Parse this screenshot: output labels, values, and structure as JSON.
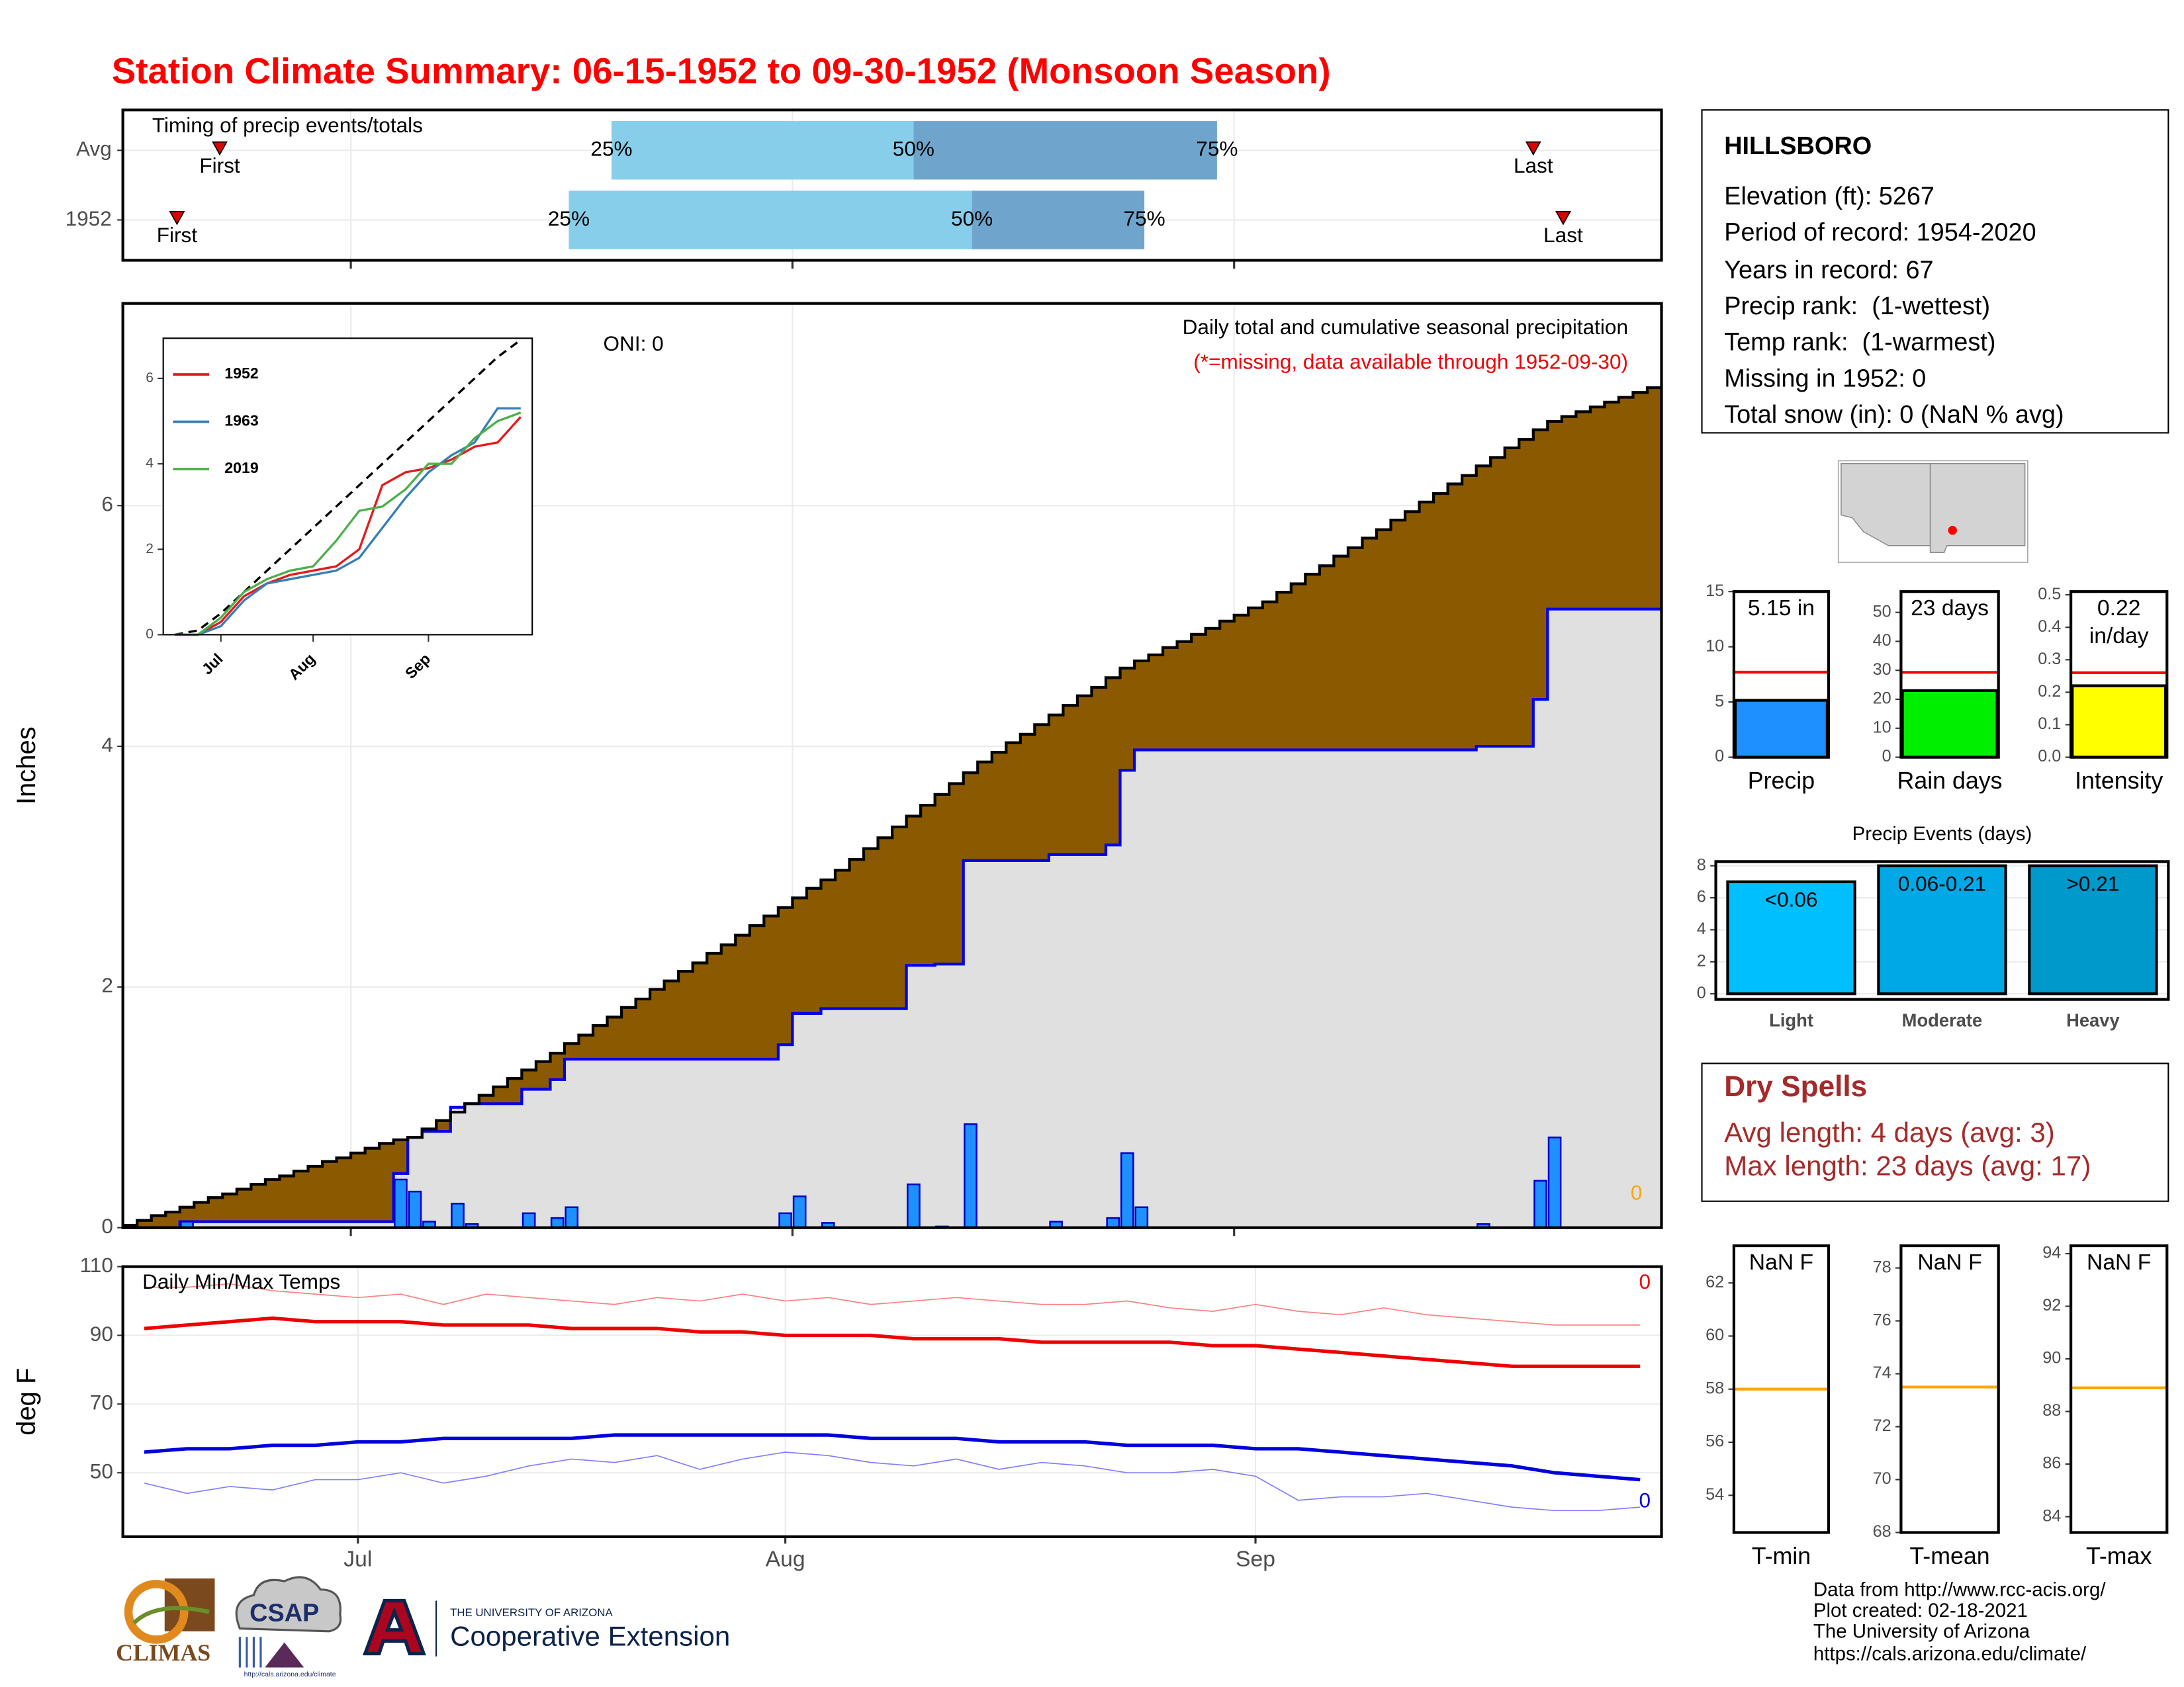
{
  "title": "Station Climate Summary: 06-15-1952 to 09-30-1952 (Monsoon Season)",
  "station": {
    "name": "HILLSBORO",
    "details": [
      "Elevation (ft): 5267",
      "Period of record: 1954-2020",
      "Years in record: 67",
      "Precip rank:  (1-wettest)",
      "Temp rank:  (1-warmest)",
      "Missing in 1952: 0",
      "Total snow (in): 0 (NaN % avg)"
    ]
  },
  "dry_spells": {
    "title": "Dry Spells",
    "lines": [
      "Avg length: 4 days (avg: 3)",
      "Max length: 23 days (avg: 17)"
    ]
  },
  "credits": [
    "Data from http://www.rcc-acis.org/",
    "Plot created: 02-18-2021",
    "The University of Arizona",
    "https://cals.arizona.edu/climate/"
  ],
  "logos": {
    "climas": "CLIMAS",
    "csap": "CSAP",
    "csap_url": "http://cals.arizona.edu/climate",
    "university": "THE UNIVERSITY OF ARIZONA",
    "extension": "Cooperative Extension"
  },
  "chart_data": [
    {
      "type": "timing",
      "title": "Timing of precip events/totals",
      "xlim": [
        0,
        108
      ],
      "xticks": [
        16,
        47,
        78
      ],
      "grid": true,
      "marker_labels": {
        "first": "First",
        "last": "Last",
        "p25": "25%",
        "p50": "50%",
        "p75": "75%"
      },
      "colors": [
        "#87ceeb",
        "#6fa5cd"
      ],
      "marker_color": "#dd0000",
      "series": [
        {
          "name": "Avg",
          "first": 6.8,
          "p25": 34.3,
          "p50": 55.5,
          "p75": 76.8,
          "last": 99.0
        },
        {
          "name": "1952",
          "first": 3.8,
          "p25": 31.3,
          "p50": 59.6,
          "p75": 71.7,
          "last": 101.1
        }
      ]
    },
    {
      "type": "precip",
      "title": "Daily total and cumulative seasonal precipitation",
      "subtitle": "(*=missing, data available through 1952-09-30)",
      "oni_label": "ONI: 0",
      "missing_days": 0,
      "y_label": "Inches",
      "ylim": [
        0,
        7.68
      ],
      "yticks": [
        0,
        2,
        4,
        6
      ],
      "grid": true,
      "average_color": "#8b5a00",
      "observed_color": "#e0e0e0",
      "line_color": "#0000ee",
      "bar_color": "#1e90ff",
      "daily": [
        0,
        0,
        0,
        0,
        0.05,
        0,
        0,
        0,
        0,
        0,
        0,
        0,
        0,
        0,
        0,
        0,
        0,
        0,
        0,
        0.4,
        0.3,
        0.05,
        0,
        0.2,
        0.03,
        0,
        0,
        0,
        0.12,
        0,
        0.08,
        0.17,
        0,
        0,
        0,
        0,
        0,
        0,
        0,
        0,
        0,
        0,
        0,
        0,
        0,
        0,
        0.12,
        0.26,
        0,
        0.04,
        0,
        0,
        0,
        0,
        0,
        0.36,
        0,
        0.01,
        0,
        0.86,
        0,
        0,
        0,
        0,
        0,
        0.05,
        0,
        0,
        0,
        0.08,
        0.62,
        0.17,
        0,
        0,
        0,
        0,
        0,
        0,
        0,
        0,
        0,
        0,
        0,
        0,
        0,
        0,
        0,
        0,
        0,
        0,
        0,
        0,
        0,
        0,
        0,
        0.03,
        0,
        0,
        0,
        0.39,
        0.75,
        0,
        0,
        0,
        0,
        0,
        0,
        0
      ],
      "average_cumulative": [
        0.02,
        0.06,
        0.1,
        0.13,
        0.17,
        0.21,
        0.25,
        0.28,
        0.32,
        0.36,
        0.4,
        0.43,
        0.47,
        0.51,
        0.55,
        0.58,
        0.62,
        0.66,
        0.7,
        0.73,
        0.75,
        0.82,
        0.89,
        0.96,
        1.03,
        1.1,
        1.17,
        1.24,
        1.31,
        1.38,
        1.45,
        1.53,
        1.6,
        1.68,
        1.75,
        1.83,
        1.9,
        1.98,
        2.05,
        2.13,
        2.2,
        2.28,
        2.35,
        2.43,
        2.51,
        2.59,
        2.66,
        2.74,
        2.82,
        2.89,
        2.97,
        3.06,
        3.15,
        3.24,
        3.33,
        3.42,
        3.51,
        3.6,
        3.69,
        3.78,
        3.87,
        3.95,
        4.03,
        4.1,
        4.18,
        4.26,
        4.34,
        4.42,
        4.49,
        4.57,
        4.65,
        4.71,
        4.76,
        4.82,
        4.87,
        4.93,
        4.98,
        5.04,
        5.09,
        5.15,
        5.2,
        5.28,
        5.35,
        5.43,
        5.5,
        5.58,
        5.65,
        5.73,
        5.8,
        5.88,
        5.95,
        6.03,
        6.1,
        6.18,
        6.25,
        6.33,
        6.4,
        6.48,
        6.55,
        6.63,
        6.7,
        6.74,
        6.78,
        6.82,
        6.86,
        6.9,
        6.94,
        6.98
      ]
    },
    {
      "type": "line",
      "categories": [
        null,
        null,
        "Jul",
        null,
        null,
        null,
        "Aug",
        null,
        null,
        null,
        null,
        "Sep",
        null,
        null,
        null,
        null
      ],
      "ylim": [
        0,
        6.94
      ],
      "yticks": [
        0,
        2,
        4,
        6
      ],
      "grid": false,
      "legend": "top-left",
      "series": [
        {
          "color": "#000000",
          "dash": true,
          "values": [
            0,
            0.1,
            0.5,
            1.0,
            1.5,
            2.0,
            2.5,
            3.0,
            3.5,
            4.0,
            4.5,
            5.0,
            5.5,
            6.0,
            6.5,
            6.9
          ]
        },
        {
          "name": "1952",
          "color": "#e41a1c",
          "values": [
            0,
            0,
            0.3,
            0.9,
            1.2,
            1.4,
            1.5,
            1.6,
            2.0,
            3.5,
            3.8,
            3.9,
            4.1,
            4.4,
            4.5,
            5.1
          ]
        },
        {
          "name": "1963",
          "color": "#377eb8",
          "values": [
            0,
            0,
            0.2,
            0.8,
            1.2,
            1.3,
            1.4,
            1.5,
            1.8,
            2.5,
            3.2,
            3.8,
            4.2,
            4.5,
            5.3,
            5.3
          ]
        },
        {
          "name": "2019",
          "color": "#4daf4a",
          "values": [
            0,
            0,
            0.4,
            1.0,
            1.3,
            1.5,
            1.6,
            2.2,
            2.9,
            3.0,
            3.4,
            4.0,
            4.0,
            4.6,
            5.0,
            5.2
          ]
        }
      ]
    },
    {
      "type": "line",
      "title": "Daily Min/Max Temps",
      "y_label": "deg F",
      "max_missing": 0,
      "min_missing": 0,
      "categories": [
        null,
        null,
        null,
        null,
        null,
        "Jul",
        null,
        null,
        null,
        null,
        null,
        null,
        null,
        null,
        null,
        "Aug",
        null,
        null,
        null,
        null,
        null,
        null,
        null,
        null,
        null,
        null,
        "Sep",
        null,
        null,
        null,
        null,
        null,
        null,
        null,
        null,
        null
      ],
      "ylim": [
        31.4,
        110
      ],
      "yticks": [
        50,
        70,
        90,
        110
      ],
      "grid": true,
      "series": [
        {
          "color": "#ff8080",
          "line_width": 0.8,
          "values": [
            104,
            104,
            105,
            103,
            102,
            101,
            102,
            99,
            102,
            101,
            100,
            99,
            101,
            100,
            102,
            100,
            101,
            99,
            100,
            101,
            100,
            99,
            99,
            100,
            98,
            97,
            99,
            97,
            96,
            98,
            96,
            95,
            94,
            93,
            93,
            93
          ]
        },
        {
          "color": "#ee0000",
          "line_width": 2.5,
          "values": [
            92,
            93,
            94,
            95,
            94,
            94,
            94,
            93,
            93,
            93,
            92,
            92,
            92,
            91,
            91,
            90,
            90,
            90,
            89,
            89,
            89,
            88,
            88,
            88,
            88,
            87,
            87,
            86,
            85,
            84,
            83,
            82,
            81,
            81,
            81,
            81
          ]
        },
        {
          "color": "#0000dd",
          "line_width": 2.5,
          "values": [
            56,
            57,
            57,
            58,
            58,
            59,
            59,
            60,
            60,
            60,
            60,
            61,
            61,
            61,
            61,
            61,
            61,
            60,
            60,
            60,
            59,
            59,
            59,
            58,
            58,
            58,
            57,
            57,
            56,
            55,
            54,
            53,
            52,
            50,
            49,
            48
          ]
        },
        {
          "color": "#8080ff",
          "line_width": 0.8,
          "values": [
            47,
            44,
            46,
            45,
            48,
            48,
            50,
            47,
            49,
            52,
            54,
            53,
            55,
            51,
            54,
            56,
            55,
            53,
            52,
            54,
            51,
            53,
            52,
            50,
            50,
            51,
            49,
            42,
            43,
            43,
            44,
            42,
            40,
            39,
            39,
            40
          ]
        }
      ]
    },
    {
      "type": "bar",
      "categories": [
        "Precip"
      ],
      "values": [
        5.15
      ],
      "value_labels": [
        "5.15 in"
      ],
      "color": "#1e90ff",
      "reference": 7.7,
      "reference_color": "#ff0000",
      "ylim": [
        0,
        15
      ],
      "yticks": [
        0,
        5,
        10,
        15
      ]
    },
    {
      "type": "bar",
      "categories": [
        "Rain days"
      ],
      "values": [
        23
      ],
      "value_labels": [
        "23 days"
      ],
      "color": "#00ee00",
      "reference": 29.3,
      "reference_color": "#ff0000",
      "ylim": [
        0,
        57.2
      ],
      "yticks": [
        0,
        10,
        20,
        30,
        40,
        50
      ]
    },
    {
      "type": "bar",
      "categories": [
        "Intensity"
      ],
      "values": [
        0.22
      ],
      "value_labels": [
        "0.22 in/day"
      ],
      "color": "#ffff00",
      "reference": 0.26,
      "reference_color": "#ff0000",
      "ylim": [
        0,
        0.51
      ],
      "yticks": [
        {
          "value": 0,
          "label": "0.0"
        },
        0.1,
        0.2,
        0.3,
        0.4,
        0.5
      ]
    },
    {
      "type": "bar",
      "title": "Precip Events (days)",
      "categories": [
        "Light",
        "Moderate",
        "Heavy"
      ],
      "values": [
        7,
        8,
        8
      ],
      "bar_labels": [
        "<0.06",
        "0.06-0.21",
        ">0.21"
      ],
      "colors": [
        "#00bfff",
        "#00a9e6",
        "#0099cc"
      ],
      "ylim": [
        -0.35,
        8.26
      ],
      "yticks": [
        0,
        2,
        4,
        6,
        8
      ],
      "grid": true
    },
    {
      "type": "bar",
      "categories": [
        "T-min"
      ],
      "values": [
        null
      ],
      "value_labels": [
        "NaN F"
      ],
      "color": "#ff8c00",
      "reference": 58,
      "reference_color": "#ffa500",
      "ylim": [
        52.6,
        63.4
      ],
      "yticks": [
        54,
        56,
        58,
        60,
        62
      ]
    },
    {
      "type": "bar",
      "categories": [
        "T-mean"
      ],
      "values": [
        null
      ],
      "value_labels": [
        "NaN F"
      ],
      "color": "#ff8c00",
      "reference": 73.5,
      "reference_color": "#ffa500",
      "ylim": [
        68,
        78.84
      ],
      "yticks": [
        68,
        70,
        72,
        74,
        76,
        78
      ]
    },
    {
      "type": "bar",
      "categories": [
        "T-max"
      ],
      "values": [
        null
      ],
      "value_labels": [
        "NaN F"
      ],
      "color": "#ff8c00",
      "reference": 88.9,
      "reference_color": "#ffa500",
      "ylim": [
        83.4,
        94.3
      ],
      "yticks": [
        84,
        86,
        88,
        90,
        92,
        94
      ]
    }
  ]
}
